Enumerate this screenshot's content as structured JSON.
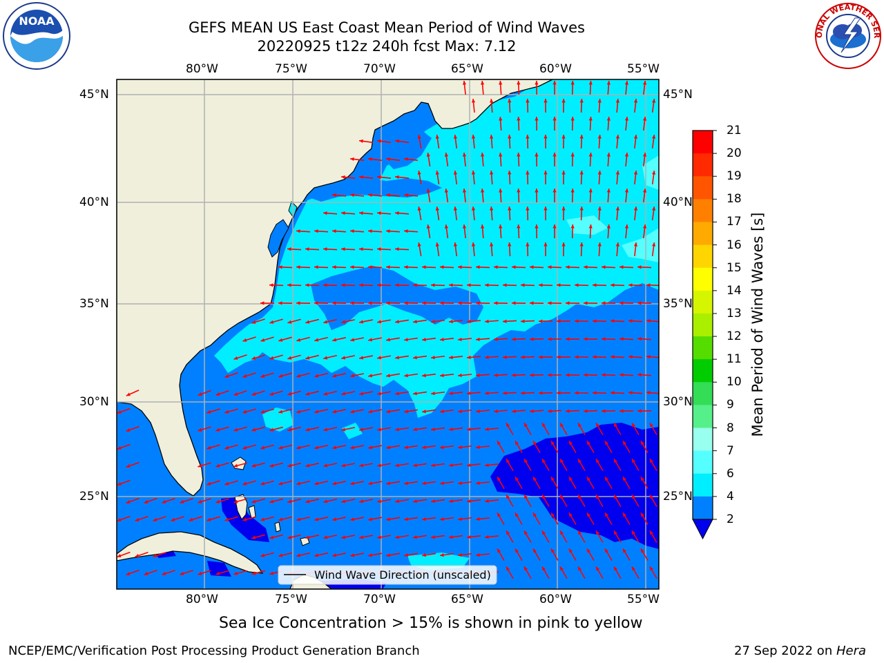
{
  "title": {
    "line1": "GEFS MEAN US East Coast Mean Period of Wind Waves",
    "line2": "20220925 t12z 240h fcst   Max: 7.12"
  },
  "map": {
    "region": "US East Coast / Western North Atlantic",
    "lon_ticks": [
      "80°W",
      "75°W",
      "70°W",
      "65°W",
      "60°W",
      "55°W"
    ],
    "lat_ticks": [
      "45°N",
      "40°N",
      "35°N",
      "30°N",
      "25°N"
    ],
    "legend": "Wind Wave Direction (unscaled)",
    "arrow_color": "#ff0000",
    "land_color": "#efefdc",
    "grid_color": "#b0b0b0"
  },
  "colorbar": {
    "title": "Mean Period of Wind Waves [s]",
    "ticks": [
      "21",
      "20",
      "19",
      "18",
      "17",
      "16",
      "15",
      "14",
      "13",
      "12",
      "11",
      "10",
      "9",
      "8",
      "7",
      "6",
      "4",
      "2"
    ],
    "levels_colors": [
      "#ff0000",
      "#ff2a00",
      "#ff5500",
      "#ff8000",
      "#ffaa00",
      "#ffd500",
      "#ffff00",
      "#d5f500",
      "#aaee00",
      "#55dd00",
      "#00cc00",
      "#33dd55",
      "#55f08a",
      "#99ffee",
      "#55ffff",
      "#00eeff",
      "#0080ff"
    ],
    "underflow_color": "#0000ee"
  },
  "note": "Sea Ice Concentration > 15% is shown in pink to yellow",
  "footer": {
    "left": "NCEP/EMC/Verification Post Processing Product Generation Branch",
    "right_date": "27 Sep 2022 on",
    "right_machine": "Hera"
  },
  "logos": {
    "left": "NOAA",
    "right": "NATIONAL WEATHER SERVICE"
  }
}
